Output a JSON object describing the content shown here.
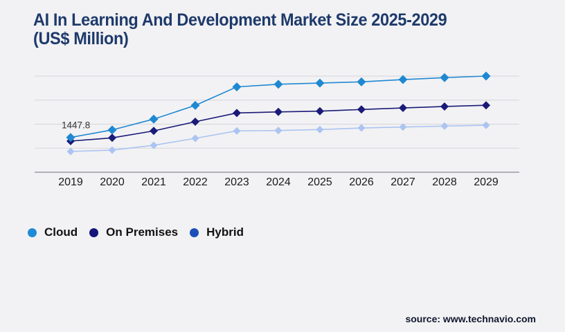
{
  "page": {
    "background_color": "#f2f2f4"
  },
  "title": {
    "line1": "AI In Learning And Development Market Size 2025-2029",
    "line2": "(US$ Million)",
    "color": "#1e3a6b"
  },
  "source": {
    "text": "source: www.technavio.com"
  },
  "legend": {
    "items": [
      "Cloud",
      "On Premises",
      "Hybrid"
    ]
  },
  "chart_data": {
    "type": "line",
    "title": "AI In Learning And Development Market Size 2025-2029 (US$ Million)",
    "xlabel": "",
    "ylabel": "US$ Million",
    "categories": [
      "2019",
      "2020",
      "2021",
      "2022",
      "2023",
      "2024",
      "2025",
      "2026",
      "2027",
      "2028",
      "2029"
    ],
    "series": [
      {
        "name": "Cloud",
        "color": "#1f88d2",
        "legend_color": "#1f8ad6",
        "values": [
          1447.8,
          1760,
          2210,
          2780,
          3550,
          3660,
          3710,
          3760,
          3855,
          3935,
          4000
        ]
      },
      {
        "name": "On Premises",
        "color": "#1a1a78",
        "legend_color": "#15157a",
        "values": [
          1295,
          1430,
          1720,
          2100,
          2465,
          2510,
          2540,
          2610,
          2675,
          2735,
          2785
        ]
      },
      {
        "name": "Hybrid",
        "color": "#abc4f1",
        "legend_color": "#1e4fb8",
        "values": [
          865,
          920,
          1120,
          1410,
          1720,
          1735,
          1775,
          1840,
          1880,
          1920,
          1955
        ]
      }
    ],
    "annotation": {
      "text": "1447.8",
      "series": "Cloud",
      "category": "2019"
    },
    "ylim": [
      0,
      4000
    ],
    "grid": "horizontal",
    "legend_position": "bottom-left",
    "x_tick_color": "#1a1a1a",
    "annotation_color": "#333333",
    "gridline_color": "#d6d6db",
    "axis_color": "#9b9ba3"
  }
}
